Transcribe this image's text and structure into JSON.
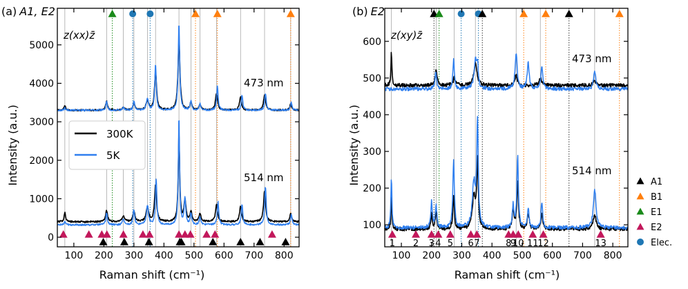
{
  "chart_data": [
    {
      "type": "line",
      "panel_label": "(a) A1, E2",
      "title_prefix": "(a)",
      "title_symbols": "A1, E2",
      "geometry": "z(xx)z̄",
      "xlabel": "Raman shift (cm⁻¹)",
      "ylabel": "Intensity (a.u.)",
      "xlim": [
        45,
        850
      ],
      "ylim": [
        -250,
        5950
      ],
      "xticks": [
        100,
        200,
        300,
        400,
        500,
        600,
        700,
        800
      ],
      "yticks": [
        0,
        1000,
        2000,
        3000,
        4000,
        5000
      ],
      "legend": {
        "position": "middle-left",
        "entries": [
          "300K",
          "5K"
        ]
      },
      "series": [
        {
          "name": "300K",
          "color": "#000000",
          "trace": "473 nm",
          "baseline": 3300,
          "peaks": [
            [
              70,
              120,
              3
            ],
            [
              209,
              230,
              4
            ],
            [
              265,
              60,
              5
            ],
            [
              300,
              180,
              4
            ],
            [
              345,
              250,
              5
            ],
            [
              372,
              1000,
              4
            ],
            [
              450,
              1800,
              4
            ],
            [
              490,
              200,
              4
            ],
            [
              520,
              150,
              4
            ],
            [
              575,
              450,
              4
            ],
            [
              655,
              350,
              4
            ],
            [
              735,
              400,
              4
            ],
            [
              822,
              150,
              4
            ]
          ]
        },
        {
          "name": "5K",
          "color": "#2f7fef",
          "trace": "473 nm",
          "baseline": 3300,
          "peaks": [
            [
              70,
              60,
              3
            ],
            [
              209,
              220,
              3
            ],
            [
              265,
              70,
              4
            ],
            [
              300,
              230,
              3
            ],
            [
              345,
              300,
              4
            ],
            [
              372,
              1200,
              3
            ],
            [
              450,
              2270,
              3
            ],
            [
              490,
              250,
              3
            ],
            [
              520,
              170,
              3
            ],
            [
              578,
              630,
              3
            ],
            [
              660,
              380,
              3
            ],
            [
              738,
              450,
              3
            ],
            [
              824,
              200,
              3
            ]
          ]
        },
        {
          "name": "300K",
          "color": "#000000",
          "trace": "514 nm",
          "baseline": 400,
          "peaks": [
            [
              70,
              250,
              3
            ],
            [
              209,
              300,
              4
            ],
            [
              265,
              150,
              5
            ],
            [
              300,
              280,
              4
            ],
            [
              345,
              380,
              5
            ],
            [
              372,
              950,
              4
            ],
            [
              450,
              2250,
              3
            ],
            [
              470,
              550,
              4
            ],
            [
              490,
              250,
              4
            ],
            [
              520,
              200,
              4
            ],
            [
              575,
              450,
              4
            ],
            [
              655,
              400,
              4
            ],
            [
              735,
              800,
              4
            ],
            [
              822,
              200,
              4
            ]
          ]
        },
        {
          "name": "5K",
          "color": "#2f7fef",
          "trace": "514 nm",
          "baseline": 320,
          "peaks": [
            [
              70,
              80,
              3
            ],
            [
              209,
              320,
              3
            ],
            [
              265,
              150,
              4
            ],
            [
              300,
              400,
              3
            ],
            [
              345,
              500,
              4
            ],
            [
              374,
              1200,
              3
            ],
            [
              450,
              2850,
              2.5
            ],
            [
              470,
              700,
              3
            ],
            [
              490,
              300,
              3
            ],
            [
              520,
              220,
              3
            ],
            [
              580,
              600,
              3
            ],
            [
              660,
              550,
              3
            ],
            [
              738,
              1000,
              3
            ],
            [
              824,
              280,
              3
            ]
          ]
        }
      ],
      "annotations": [
        "473 nm",
        "514 nm"
      ],
      "top_markers": [
        {
          "symbol": "E1",
          "shape": "triangle",
          "color": "#1a8a1a",
          "x": 228
        },
        {
          "symbol": "Elec.",
          "shape": "circle",
          "color": "#1f77b4",
          "x": 296
        },
        {
          "symbol": "Elec.",
          "shape": "circle",
          "color": "#1f77b4",
          "x": 354
        },
        {
          "symbol": "B1",
          "shape": "triangle",
          "color": "#ff7f0e",
          "x": 505
        },
        {
          "symbol": "B1",
          "shape": "triangle",
          "color": "#ff7f0e",
          "x": 578
        },
        {
          "symbol": "B1",
          "shape": "triangle",
          "color": "#ff7f0e",
          "x": 822
        }
      ],
      "bottom_markers_E2": [
        65,
        150,
        193,
        210,
        265,
        330,
        352,
        450,
        470,
        488,
        542,
        570,
        760
      ],
      "bottom_markers_A1": [
        198,
        268,
        350,
        453,
        458,
        563,
        655,
        720,
        805
      ]
    },
    {
      "type": "line",
      "panel_label": "(b) E2",
      "title_prefix": "(b)",
      "title_symbols": "E2",
      "geometry": "z(xy)z̄",
      "xlabel": "Raman shift (cm⁻¹)",
      "ylabel": "Intensity (a.u.)",
      "xlim": [
        45,
        850
      ],
      "ylim": [
        40,
        690
      ],
      "xticks": [
        100,
        200,
        300,
        400,
        500,
        600,
        700,
        800
      ],
      "yticks": [
        100,
        200,
        300,
        400,
        500,
        600
      ],
      "series": [
        {
          "name": "300K",
          "color": "#000000",
          "trace": "473 nm",
          "baseline": 480,
          "peaks": [
            [
              67,
              90,
              2
            ],
            [
              215,
              40,
              4
            ],
            [
              275,
              20,
              4
            ],
            [
              345,
              60,
              6
            ],
            [
              480,
              30,
              4
            ],
            [
              560,
              20,
              5
            ],
            [
              740,
              15,
              5
            ]
          ]
        },
        {
          "name": "5K",
          "color": "#2f7fef",
          "trace": "473 nm",
          "baseline": 470,
          "peaks": [
            [
              214,
              50,
              3
            ],
            [
              273,
              80,
              3
            ],
            [
              345,
              75,
              5
            ],
            [
              352,
              60,
              3
            ],
            [
              480,
              100,
              4
            ],
            [
              520,
              70,
              4
            ],
            [
              565,
              60,
              4
            ],
            [
              740,
              50,
              4
            ]
          ]
        },
        {
          "name": "300K",
          "color": "#000000",
          "trace": "514 nm",
          "baseline": 88,
          "peaks": [
            [
              67,
              85,
              2
            ],
            [
              200,
              40,
              3
            ],
            [
              215,
              50,
              3
            ],
            [
              273,
              90,
              3
            ],
            [
              340,
              90,
              6
            ],
            [
              352,
              180,
              3
            ],
            [
              470,
              50,
              4
            ],
            [
              485,
              130,
              3
            ],
            [
              520,
              40,
              4
            ],
            [
              565,
              40,
              4
            ],
            [
              740,
              40,
              6
            ]
          ]
        },
        {
          "name": "5K",
          "color": "#2f7fef",
          "trace": "514 nm",
          "baseline": 92,
          "peaks": [
            [
              67,
              140,
              2
            ],
            [
              200,
              70,
              3
            ],
            [
              215,
              60,
              3
            ],
            [
              273,
              185,
              3
            ],
            [
              340,
              120,
              6
            ],
            [
              352,
              280,
              3
            ],
            [
              470,
              60,
              3
            ],
            [
              485,
              195,
              3
            ],
            [
              520,
              55,
              3
            ],
            [
              565,
              70,
              3
            ],
            [
              740,
              105,
              5
            ]
          ]
        }
      ],
      "annotations": [
        "473 nm",
        "514 nm"
      ],
      "top_markers": [
        {
          "symbol": "A1",
          "shape": "triangle",
          "color": "#000000",
          "x": 208
        },
        {
          "symbol": "E1",
          "shape": "triangle",
          "color": "#1a8a1a",
          "x": 225
        },
        {
          "symbol": "Elec.",
          "shape": "circle",
          "color": "#1f77b4",
          "x": 298
        },
        {
          "symbol": "Elec.",
          "shape": "circle",
          "color": "#1f77b4",
          "x": 355
        },
        {
          "symbol": "A1",
          "shape": "triangle",
          "color": "#000000",
          "x": 368
        },
        {
          "symbol": "B1",
          "shape": "triangle",
          "color": "#ff7f0e",
          "x": 505
        },
        {
          "symbol": "B1",
          "shape": "triangle",
          "color": "#ff7f0e",
          "x": 578
        },
        {
          "symbol": "A1",
          "shape": "triangle",
          "color": "#000000",
          "x": 655
        },
        {
          "symbol": "B1",
          "shape": "triangle",
          "color": "#ff7f0e",
          "x": 822
        }
      ],
      "bottom_markers_E2": [
        {
          "x": 70,
          "label": "1"
        },
        {
          "x": 148,
          "label": "2"
        },
        {
          "x": 200,
          "label": "3"
        },
        {
          "x": 222,
          "label": "4"
        },
        {
          "x": 262,
          "label": "5"
        },
        {
          "x": 330,
          "label": "6"
        },
        {
          "x": 350,
          "label": "7"
        },
        {
          "x": 455,
          "label": "8"
        },
        {
          "x": 470,
          "label": "9"
        },
        {
          "x": 487,
          "label": "10"
        },
        {
          "x": 535,
          "label": "11"
        },
        {
          "x": 570,
          "label": "12"
        },
        {
          "x": 760,
          "label": "13"
        }
      ]
    }
  ],
  "shared_legend": [
    {
      "symbol": "A1",
      "shape": "triangle",
      "color": "#000000"
    },
    {
      "symbol": "B1",
      "shape": "triangle",
      "color": "#ff7f0e"
    },
    {
      "symbol": "E1",
      "shape": "triangle",
      "color": "#1a8a1a"
    },
    {
      "symbol": "E2",
      "shape": "triangle",
      "color": "#c2185b"
    },
    {
      "symbol": "Elec.",
      "shape": "circle",
      "color": "#1f77b4"
    }
  ],
  "colors": {
    "e2": "#c2185b",
    "a1": "#000000",
    "blue": "#2f7fef"
  }
}
